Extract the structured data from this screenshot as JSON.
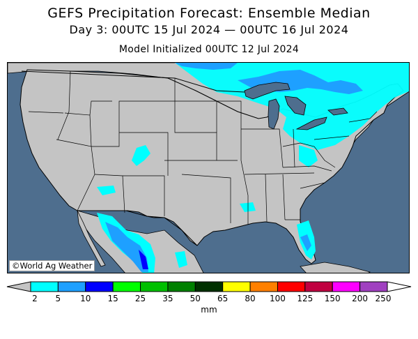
{
  "header": {
    "title": "GEFS Precipitation Forecast: Ensemble Median",
    "valid": "Day 3: 00UTC 15 Jul 2024 — 00UTC 16 Jul 2024",
    "init": "Model Initialized 00UTC 12 Jul 2024"
  },
  "map": {
    "credit": "©World Ag Weather",
    "colors": {
      "ocean": "#4e6e8e",
      "land": "#c4c4c4",
      "lakes": "#4e6e8e",
      "borders": "#000000"
    }
  },
  "legend": {
    "units": "mm",
    "ticks": [
      "2",
      "5",
      "10",
      "15",
      "25",
      "35",
      "50",
      "65",
      "80",
      "100",
      "125",
      "150",
      "200",
      "250"
    ],
    "colors": [
      "#00ffff",
      "#1ea0ff",
      "#0000ff",
      "#00ff00",
      "#00c000",
      "#008000",
      "#003000",
      "#ffff00",
      "#ff8000",
      "#ff0000",
      "#c00040",
      "#ff00ff",
      "#a040c0"
    ],
    "below_color": "#c4c4c4",
    "above_color": "#ffffff"
  }
}
